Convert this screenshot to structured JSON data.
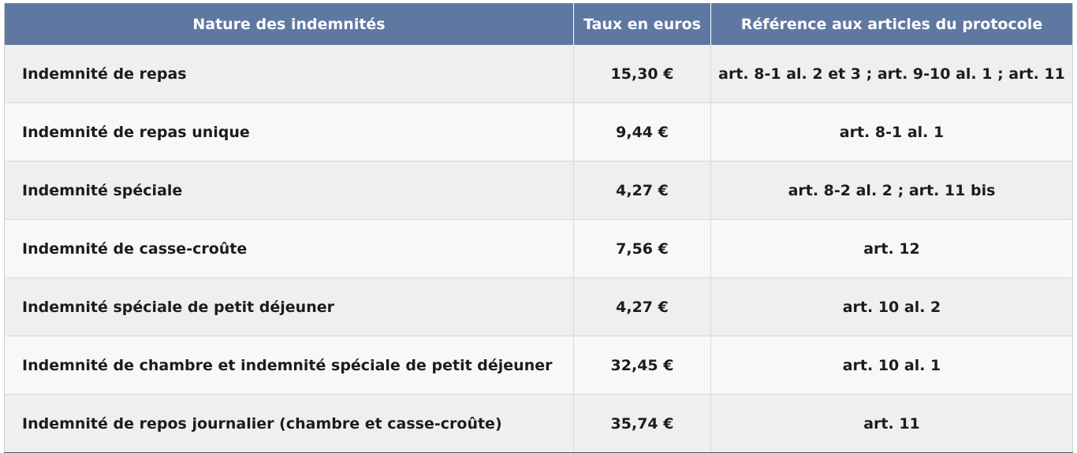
{
  "table": {
    "headers": {
      "nature": "Nature des indemnités",
      "taux": "Taux en euros",
      "reference": "Référence aux articles du protocole"
    },
    "rows": [
      {
        "nature": "Indemnité de repas",
        "taux": "15,30 €",
        "reference": "art. 8-1 al. 2 et 3 ; art. 9-10 al. 1 ; art. 11"
      },
      {
        "nature": "Indemnité de repas unique",
        "taux": "9,44 €",
        "reference": "art. 8-1 al. 1"
      },
      {
        "nature": "Indemnité spéciale",
        "taux": "4,27 €",
        "reference": "art. 8-2 al. 2 ; art. 11 bis"
      },
      {
        "nature": "Indemnité de casse-croûte",
        "taux": "7,56 €",
        "reference": "art. 12"
      },
      {
        "nature": "Indemnité spéciale de petit déjeuner",
        "taux": "4,27 €",
        "reference": "art. 10 al. 2"
      },
      {
        "nature": "Indemnité de chambre et indemnité spéciale de petit déjeuner",
        "taux": "32,45 €",
        "reference": "art. 10 al. 1"
      },
      {
        "nature": "Indemnité de repos journalier (chambre et casse-croûte)",
        "taux": "35,74 €",
        "reference": "art. 11"
      }
    ]
  }
}
